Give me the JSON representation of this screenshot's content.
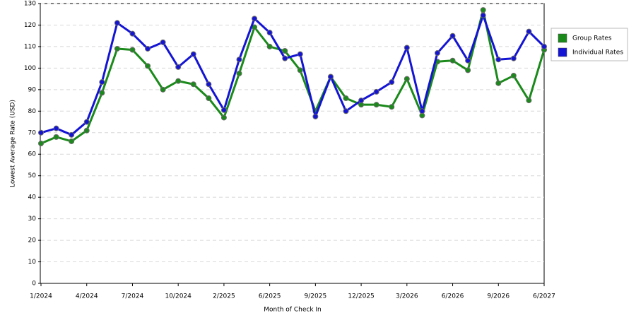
{
  "chart_data": {
    "type": "line",
    "x_label": "Month of Check In",
    "y_label": "Lowest Average Rate (USD)",
    "categories": [
      "1/2024",
      null,
      null,
      "4/2024",
      null,
      null,
      "7/2024",
      null,
      null,
      "10/2024",
      null,
      null,
      "2/2025",
      null,
      null,
      "6/2025",
      null,
      null,
      "9/2025",
      null,
      null,
      "12/2025",
      null,
      null,
      "3/2026",
      null,
      null,
      "6/2026",
      null,
      null,
      "9/2026",
      null,
      null,
      "6/2027"
    ],
    "series": [
      {
        "name": "Group Rates",
        "color": "#1a8a1a",
        "values": [
          65,
          68,
          66,
          71,
          88.5,
          109,
          108.5,
          101,
          90,
          94,
          92.5,
          86,
          77,
          97.5,
          119,
          110,
          108,
          99,
          80,
          96,
          86,
          83,
          83,
          82,
          95,
          78,
          103,
          103.5,
          99,
          127,
          93,
          96.5,
          85,
          108.5
        ]
      },
      {
        "name": "Individual Rates",
        "color": "#1414d4",
        "values": [
          70,
          72,
          69,
          75,
          93.5,
          121,
          116,
          109,
          112,
          100.5,
          106.5,
          92.5,
          80.5,
          104,
          123,
          116.5,
          104.5,
          106.5,
          77.5,
          96,
          80,
          85,
          89,
          93.5,
          109.5,
          80,
          107,
          115,
          103.5,
          124.5,
          104,
          104.5,
          117,
          110
        ]
      }
    ],
    "ylim": [
      0,
      130
    ],
    "yticks": [
      0,
      10,
      20,
      30,
      40,
      50,
      60,
      70,
      80,
      90,
      100,
      110,
      120,
      130
    ],
    "grid": true,
    "legend": "right"
  }
}
